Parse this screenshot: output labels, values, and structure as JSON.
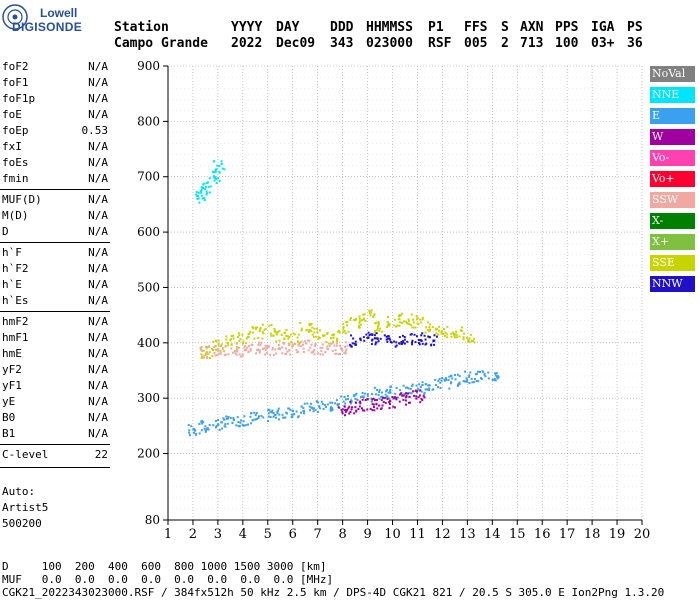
{
  "logo": {
    "top": "Lowell",
    "bottom": "DIGISONDE"
  },
  "header": {
    "row1": [
      "Station",
      "YYYY",
      "DAY",
      "DDD",
      "HHMMSS",
      "P1",
      "FFS",
      "S",
      "AXN",
      "PPS",
      "IGA",
      "PS"
    ],
    "row2": [
      "Campo Grande",
      "2022",
      "Dec09",
      "343",
      "023000",
      "RSF",
      "005",
      "2",
      "713",
      "100",
      "03+",
      "36"
    ]
  },
  "params": [
    {
      "name": "foF2",
      "value": "N/A"
    },
    {
      "name": "foF1",
      "value": "N/A"
    },
    {
      "name": "foF1p",
      "value": "N/A"
    },
    {
      "name": "foE",
      "value": "N/A"
    },
    {
      "name": "foEp",
      "value": "0.53"
    },
    {
      "name": "fxI",
      "value": "N/A"
    },
    {
      "name": "foEs",
      "value": "N/A"
    },
    {
      "name": "fmin",
      "value": "N/A"
    },
    {
      "name": "MUF(D)",
      "value": "N/A"
    },
    {
      "name": "M(D)",
      "value": "N/A"
    },
    {
      "name": "D",
      "value": "N/A"
    },
    {
      "name": "h`F",
      "value": "N/A"
    },
    {
      "name": "h`F2",
      "value": "N/A"
    },
    {
      "name": "h`E",
      "value": "N/A"
    },
    {
      "name": "h`Es",
      "value": "N/A"
    },
    {
      "name": "hmF2",
      "value": "N/A"
    },
    {
      "name": "hmF1",
      "value": "N/A"
    },
    {
      "name": "hmE",
      "value": "N/A"
    },
    {
      "name": "yF2",
      "value": "N/A"
    },
    {
      "name": "yF1",
      "value": "N/A"
    },
    {
      "name": "yE",
      "value": "N/A"
    },
    {
      "name": "B0",
      "value": "N/A"
    },
    {
      "name": "B1",
      "value": "N/A"
    },
    {
      "name": "C-level",
      "value": "22"
    }
  ],
  "auto": {
    "line1": "Auto:",
    "line2": "Artist5",
    "line3": "500200"
  },
  "legend": [
    {
      "label": "NoVal",
      "color": "#808080"
    },
    {
      "label": "NNE",
      "color": "#00e5ff"
    },
    {
      "label": "E",
      "color": "#3aa0f0"
    },
    {
      "label": "W",
      "color": "#a000a0"
    },
    {
      "label": "Vo-",
      "color": "#ff40b0"
    },
    {
      "label": "Vo+",
      "color": "#ff0030"
    },
    {
      "label": "SSW",
      "color": "#f0a8a0"
    },
    {
      "label": "X-",
      "color": "#008000"
    },
    {
      "label": "X+",
      "color": "#80c040"
    },
    {
      "label": "SSE",
      "color": "#c8d400"
    },
    {
      "label": "NNW",
      "color": "#2010c8"
    }
  ],
  "footer": {
    "d_line": "D     100  200  400  600  800 1000 1500 3000 [km]",
    "muf_line": "MUF   0.0  0.0  0.0  0.0  0.0  0.0  0.0  0.0 [MHz]",
    "info_line": "CGK21_2022343023000.RSF / 384fx512h 50 kHz 2.5 km / DPS-4D CGK21 821 / 20.5 S 305.0 E Ion2Png 1.3.20"
  },
  "chart_data": {
    "type": "scatter",
    "title": "",
    "xlabel": "",
    "ylabel": "",
    "xlim": [
      1,
      20
    ],
    "ylim": [
      80,
      900
    ],
    "x_ticks": [
      1,
      2,
      3,
      4,
      5,
      6,
      7,
      8,
      9,
      10,
      11,
      12,
      13,
      14,
      15,
      16,
      17,
      18,
      19,
      20
    ],
    "y_ticks": [
      80,
      200,
      300,
      400,
      500,
      600,
      700,
      800,
      900
    ],
    "grid": true,
    "series": [
      {
        "name": "E",
        "color": "#3aa0f0",
        "x": [
          2.0,
          2.5,
          3.0,
          3.5,
          4.0,
          4.5,
          5.0,
          5.5,
          6.0,
          6.5,
          7.0,
          7.5,
          8.0,
          8.5,
          9.0,
          9.5,
          10.0,
          10.5,
          11.0,
          11.5,
          12.0,
          12.5,
          13.0,
          13.5,
          14.0
        ],
        "y": [
          245,
          250,
          255,
          258,
          262,
          266,
          270,
          274,
          278,
          282,
          286,
          290,
          295,
          300,
          305,
          310,
          312,
          315,
          320,
          325,
          330,
          335,
          340,
          340,
          342
        ]
      },
      {
        "name": "SSE",
        "color": "#c8d400",
        "x": [
          2.5,
          3.0,
          3.5,
          4.0,
          4.5,
          5.0,
          5.5,
          6.0,
          6.5,
          7.0,
          7.5,
          8.0,
          8.5,
          9.0,
          9.5,
          10.0,
          10.5,
          11.0,
          11.5,
          12.0,
          12.5,
          13.0
        ],
        "y": [
          385,
          395,
          405,
          410,
          420,
          425,
          415,
          410,
          430,
          420,
          410,
          430,
          440,
          450,
          430,
          440,
          445,
          440,
          430,
          420,
          420,
          410
        ]
      },
      {
        "name": "SSW",
        "color": "#f0a8a0",
        "x": [
          2.5,
          3.0,
          3.5,
          4.0,
          4.5,
          5.0,
          5.5,
          6.0,
          6.5,
          7.0,
          7.5,
          8.0
        ],
        "y": [
          385,
          390,
          390,
          388,
          392,
          390,
          392,
          390,
          395,
          390,
          392,
          392
        ]
      },
      {
        "name": "NNW",
        "color": "#2010c8",
        "x": [
          8.5,
          9.0,
          9.5,
          10.0,
          10.5,
          11.0,
          11.5
        ],
        "y": [
          405,
          410,
          410,
          405,
          410,
          410,
          405
        ]
      },
      {
        "name": "W",
        "color": "#a000a0",
        "x": [
          8.0,
          8.5,
          9.0,
          9.5,
          10.0,
          10.5,
          11.0
        ],
        "y": [
          280,
          285,
          290,
          292,
          295,
          300,
          305
        ]
      },
      {
        "name": "NNE",
        "color": "#00e5ff",
        "x": [
          2.3,
          2.5,
          2.8,
          3.0
        ],
        "y": [
          665,
          680,
          700,
          720
        ]
      }
    ]
  }
}
